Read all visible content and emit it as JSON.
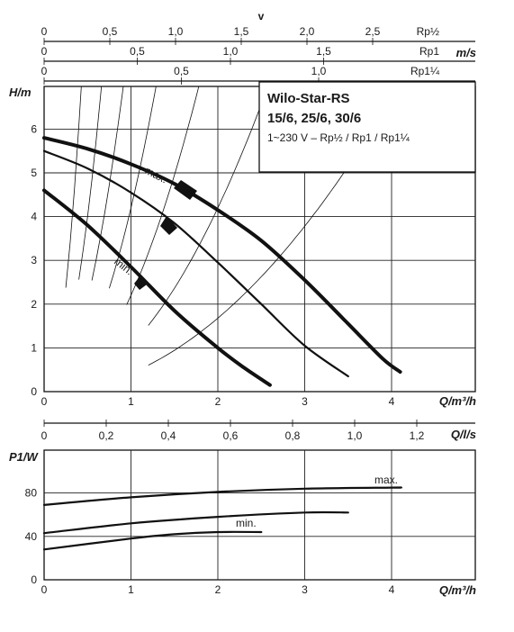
{
  "chart_data": [
    {
      "type": "line",
      "title": "Wilo-Star-RS",
      "subtitle": "15/6, 25/6, 30/6",
      "note": "1~230 V – Rp½ / Rp1 / Rp1¼",
      "xlabel": "Q/m³/h",
      "ylabel": "H/m",
      "xlim": [
        0,
        5
      ],
      "ylim": [
        0,
        6
      ],
      "x_ticks": [
        "0",
        "1",
        "2",
        "3",
        "4"
      ],
      "y_ticks": [
        "0",
        "1",
        "2",
        "3",
        "4",
        "5",
        "6"
      ],
      "grid": true,
      "velocity_axis": {
        "label": "v",
        "unit": "m/s",
        "scales": [
          {
            "name": "Rp½",
            "ticks": [
              "0",
              "0,5",
              "1,0",
              "1,5",
              "2,0",
              "2,5"
            ],
            "values": [
              0,
              0.5,
              1.0,
              1.5,
              2.0,
              2.5
            ]
          },
          {
            "name": "Rp1",
            "ticks": [
              "0",
              "0,5",
              "1,0",
              "1,5"
            ],
            "values": [
              0,
              0.5,
              1.0,
              1.5
            ]
          },
          {
            "name": "Rp1¼",
            "ticks": [
              "0",
              "0,5",
              "1,0"
            ],
            "values": [
              0,
              0.5,
              1.0
            ]
          }
        ]
      },
      "series": [
        {
          "name": "max.",
          "x": [
            0,
            0.5,
            1,
            1.5,
            2,
            2.5,
            3,
            3.5,
            3.9,
            4.1
          ],
          "y": [
            5.8,
            5.55,
            5.2,
            4.75,
            4.15,
            3.45,
            2.55,
            1.55,
            0.75,
            0.45
          ]
        },
        {
          "x": [
            0,
            0.5,
            1,
            1.5,
            2,
            2.5,
            3,
            3.5
          ],
          "y": [
            5.5,
            5.1,
            4.55,
            3.85,
            2.95,
            2.0,
            1.05,
            0.35
          ]
        },
        {
          "name": "min.",
          "x": [
            0,
            0.5,
            1,
            1.5,
            2,
            2.3,
            2.6
          ],
          "y": [
            4.6,
            3.8,
            2.85,
            1.85,
            1.0,
            0.55,
            0.15
          ]
        }
      ]
    },
    {
      "type": "line",
      "xlabel": "Q/l/s",
      "x_ticks": [
        "0",
        "0,2",
        "0,4",
        "0,6",
        "0,8",
        "1,0",
        "1,2"
      ],
      "x_values": [
        0,
        0.2,
        0.4,
        0.6,
        0.8,
        1.0,
        1.2
      ]
    },
    {
      "type": "line",
      "xlabel": "Q/m³/h",
      "ylabel": "P1/W",
      "xlim": [
        0,
        5
      ],
      "ylim": [
        0,
        120
      ],
      "x_ticks": [
        "0",
        "1",
        "2",
        "3",
        "4"
      ],
      "y_ticks": [
        "0",
        "40",
        "80"
      ],
      "grid": true,
      "series": [
        {
          "name": "max.",
          "x": [
            0,
            1,
            2,
            3,
            4,
            4.1
          ],
          "y": [
            69,
            76,
            81,
            84,
            85,
            85
          ]
        },
        {
          "x": [
            0,
            1,
            2,
            3,
            3.5
          ],
          "y": [
            43,
            52,
            58,
            62,
            62
          ]
        },
        {
          "name": "min.",
          "x": [
            0,
            1,
            1.5,
            2,
            2.5
          ],
          "y": [
            28,
            38,
            42,
            44,
            44
          ]
        }
      ]
    }
  ]
}
